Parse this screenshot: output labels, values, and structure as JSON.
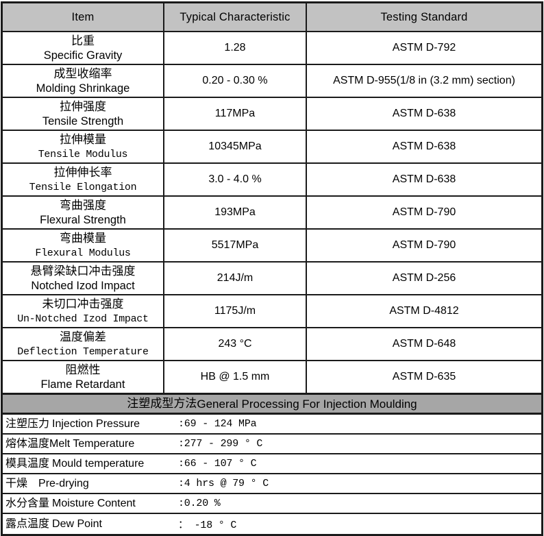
{
  "colors": {
    "header_bg": "#c2c2c2",
    "section_band_bg": "#a6a6a6",
    "border": "#1a1a1a",
    "text": "#000000"
  },
  "table": {
    "headers": {
      "item": "Item",
      "typical": "Typical Characteristic",
      "standard": "Testing Standard"
    },
    "rows": [
      {
        "zh": "比重",
        "en": "Specific Gravity",
        "value": "1.28",
        "standard": "ASTM D-792"
      },
      {
        "zh": "成型收缩率",
        "en": "Molding Shrinkage",
        "value": "0.20 - 0.30 %",
        "standard": "ASTM D-955(1/8 in (3.2 mm) section)"
      },
      {
        "zh": "拉伸强度",
        "en": "Tensile Strength",
        "value": "117MPa",
        "standard": "ASTM D-638"
      },
      {
        "zh": "拉伸模量",
        "en": "Tensile Modulus",
        "value": "10345MPa",
        "standard": "ASTM D-638"
      },
      {
        "zh": "拉伸伸长率",
        "en": "Tensile Elongation",
        "value": "3.0 - 4.0 %",
        "standard": "ASTM D-638"
      },
      {
        "zh": "弯曲强度",
        "en": "Flexural Strength",
        "value": "193MPa",
        "standard": "ASTM D-790"
      },
      {
        "zh": "弯曲模量",
        "en": "Flexural Modulus",
        "value": "5517MPa",
        "standard": "ASTM D-790"
      },
      {
        "zh": "悬臂梁缺口冲击强度",
        "en": "Notched Izod Impact",
        "value": "214J/m",
        "standard": "ASTM D-256"
      },
      {
        "zh": "未切口冲击强度",
        "en": "Un-Notched Izod Impact",
        "value": "1175J/m",
        "standard": "ASTM D-4812"
      },
      {
        "zh": "温度偏差",
        "en": "Deflection Temperature",
        "value": "243 °C",
        "standard": "ASTM D-648"
      },
      {
        "zh": "阻燃性",
        "en": "Flame Retardant",
        "value": "HB @ 1.5 mm",
        "standard": "ASTM D-635"
      }
    ]
  },
  "processing": {
    "title_zh": "注塑成型方法",
    "title_en": "General Processing For Injection Moulding",
    "rows": [
      {
        "zh": "注塑压力 ",
        "en": "Injection Pressure",
        "value": ":69 - 124 MPa"
      },
      {
        "zh": "熔体温度",
        "en": "Melt Temperature",
        "value": ":277 - 299 ° C"
      },
      {
        "zh": "模具温度 ",
        "en": "Mould temperature",
        "value": ":66 - 107 ° C"
      },
      {
        "zh": "干燥    ",
        "en": "Pre-drying",
        "value": ":4 hrs @ 79 ° C"
      },
      {
        "zh": "水分含量 ",
        "en": "Moisture Content",
        "value": ":0.20 %"
      },
      {
        "zh": "露点温度 ",
        "en": "Dew Point",
        "value": "： -18 ° C"
      }
    ]
  }
}
